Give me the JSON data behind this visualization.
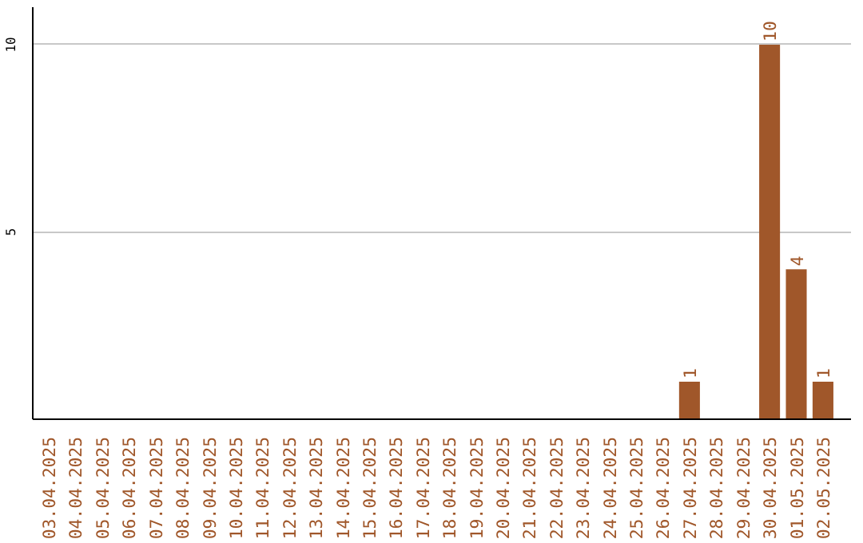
{
  "chart_data": {
    "type": "bar",
    "categories": [
      "03.04.2025",
      "04.04.2025",
      "05.04.2025",
      "06.04.2025",
      "07.04.2025",
      "08.04.2025",
      "09.04.2025",
      "10.04.2025",
      "11.04.2025",
      "12.04.2025",
      "13.04.2025",
      "14.04.2025",
      "15.04.2025",
      "16.04.2025",
      "17.04.2025",
      "18.04.2025",
      "19.04.2025",
      "20.04.2025",
      "21.04.2025",
      "22.04.2025",
      "23.04.2025",
      "24.04.2025",
      "25.04.2025",
      "26.04.2025",
      "27.04.2025",
      "28.04.2025",
      "29.04.2025",
      "30.04.2025",
      "01.05.2025",
      "02.05.2025"
    ],
    "values": [
      0,
      0,
      0,
      0,
      0,
      0,
      0,
      0,
      0,
      0,
      0,
      0,
      0,
      0,
      0,
      0,
      0,
      0,
      0,
      0,
      0,
      0,
      0,
      0,
      1,
      0,
      0,
      10,
      4,
      1
    ],
    "value_labels": [
      null,
      null,
      null,
      null,
      null,
      null,
      null,
      null,
      null,
      null,
      null,
      null,
      null,
      null,
      null,
      null,
      null,
      null,
      null,
      null,
      null,
      null,
      null,
      null,
      "1",
      null,
      null,
      "10",
      "4",
      "1"
    ],
    "color": "#a0572a",
    "ylim": [
      0,
      11
    ],
    "yticks": [
      5,
      10
    ],
    "grid": "y"
  }
}
